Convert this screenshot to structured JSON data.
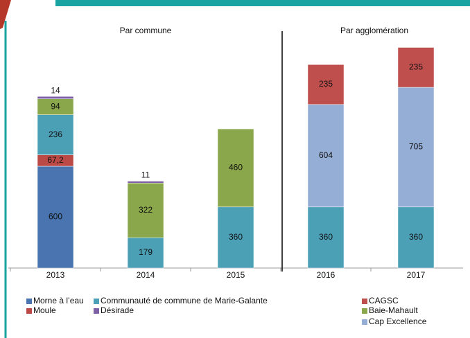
{
  "chart_data": {
    "type": "stacked_bar",
    "annotations": [
      "Par commune",
      "Par agglomération"
    ],
    "categories": [
      "2013",
      "2014",
      "2015",
      "2016",
      "2017"
    ],
    "ylim": [
      0,
      1400
    ],
    "series": [
      {
        "name": "Morne à l’eau",
        "color": "#4a74b0",
        "values": [
          600,
          null,
          null,
          null,
          null
        ]
      },
      {
        "name": "Moule",
        "color": "#bb4a47",
        "values": [
          67.2,
          null,
          null,
          null,
          null
        ],
        "value_labels": [
          "67,2",
          null,
          null,
          null,
          null
        ]
      },
      {
        "name": "Communauté de commune de Marie-Galante",
        "color": "#4ba0b6",
        "values": [
          236,
          179,
          360,
          360,
          360
        ]
      },
      {
        "name": "Cap Excellence",
        "color": "#95aed6",
        "values": [
          null,
          null,
          null,
          604,
          705
        ]
      },
      {
        "name": "Baie-Mahault",
        "color": "#8ba74b",
        "values": [
          94,
          322,
          460,
          null,
          null
        ]
      },
      {
        "name": "CAGSC",
        "color": "#bf4f4c",
        "values": [
          null,
          null,
          null,
          235,
          235
        ]
      },
      {
        "name": "Désirade",
        "color": "#7d60a6",
        "values": [
          14,
          11,
          null,
          null,
          null
        ]
      }
    ]
  }
}
